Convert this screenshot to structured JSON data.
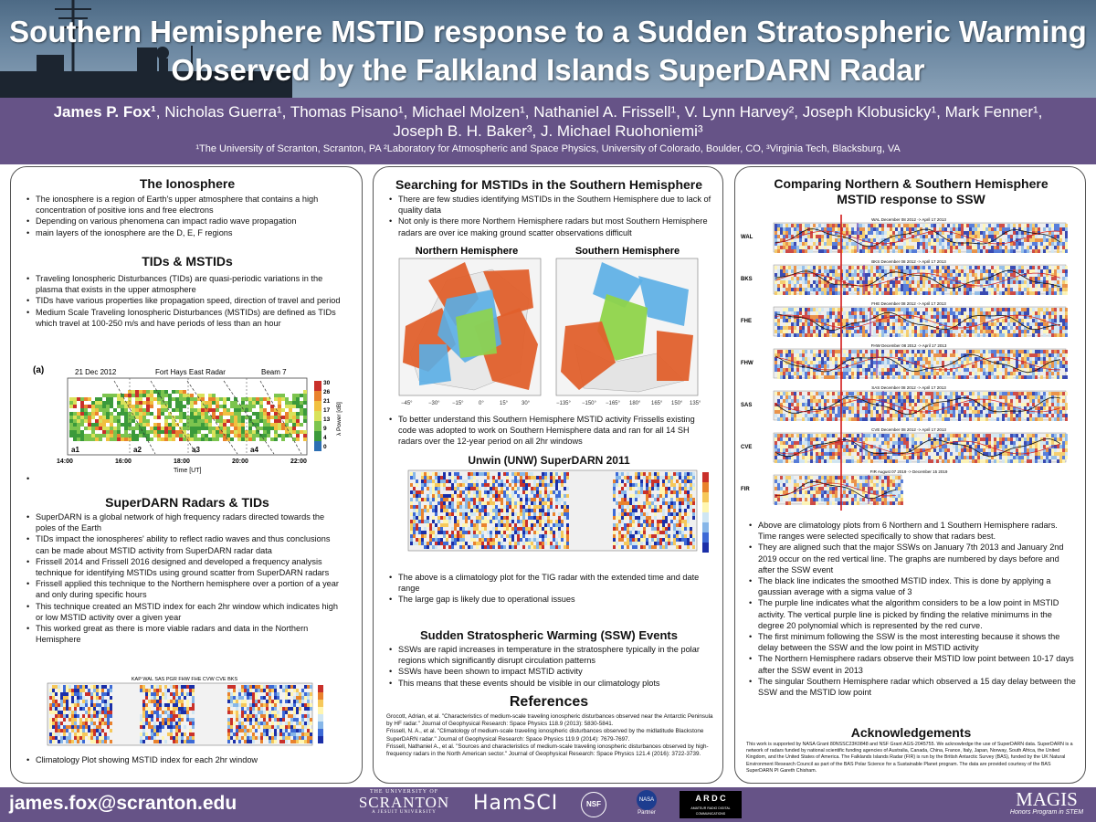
{
  "header": {
    "title_line1": "Southern Hemisphere MSTID response to a Sudden Stratospheric Warming",
    "title_line2": "Observed by the Falkland Islands SuperDARN Radar",
    "authors_line1_lead": "James P. Fox",
    "authors_line1_rest": ", Nicholas Guerra¹, Thomas Pisano¹, Michael Molzen¹, Nathaniel A. Frissell¹, V. Lynn Harvey², Joseph Klobusicky¹, Mark Fenner¹,",
    "authors_line2": "Joseph B. H. Baker³, J. Michael Ruohoniemi³",
    "affiliations": "¹The University of Scranton, Scranton, PA ²Laboratory for Atmospheric and Space Physics, University of Colorado, Boulder, CO, ³Virginia Tech, Blacksburg, VA"
  },
  "col1": {
    "ionosphere_title": "The Ionosphere",
    "ionosphere_bullets": [
      "The ionosphere is a region of Earth's upper atmosphere that contains a high concentration of positive ions and free electrons",
      "Depending on various phenomena can impact radio wave propagation",
      "main layers of the ionosphere are the D, E, F regions"
    ],
    "tids_title": "TIDs & MSTIDs",
    "tids_bullets": [
      "Traveling Ionospheric Disturbances (TIDs) are quasi-periodic variations in the plasma that exists in the upper atmosphere",
      "TIDs have various properties like propagation speed, direction of travel and period",
      "Medium Scale Traveling Ionospheric Disturbances (MSTIDs) are defined as TIDs which travel at 100-250 m/s and have periods of less than an hour"
    ],
    "fig_a": {
      "panel_label": "(a)",
      "date": "21 Dec 2012",
      "radar": "Fort Hays East Radar",
      "beam": "Beam 7",
      "xticks": [
        "14:00",
        "16:00",
        "18:00",
        "20:00",
        "22:00"
      ],
      "xlabel": "Time [UT]",
      "segments": [
        "a1",
        "a2",
        "a3",
        "a4"
      ],
      "colorbar_ticks": [
        "30",
        "26",
        "21",
        "17",
        "13",
        "9",
        "4",
        "0"
      ],
      "colorbar_label": "λ Power [dB]"
    },
    "superdarn_title": "SuperDARN Radars & TIDs",
    "superdarn_bullets": [
      "SuperDARN is a global network of high frequency radars directed towards the poles of the Earth",
      "TIDs impact the ionospheres' ability to reflect radio waves and thus conclusions can be made about MSTID activity from SuperDARN radar data",
      "Frissell 2014 and Frissell 2016 designed and developed a frequency analysis technique for identifying MSTIDs using ground scatter from SuperDARN radars",
      "Frissell applied this technique to the Northern hemisphere over a portion of a year and only during specific hours",
      "This technique created an MSTID index for each 2hr window which indicates high or low MSTID activity over a given year",
      "This worked great as there is more viable radars and data in the Northern Hemisphere"
    ],
    "climatology_title": "KAP WAL SAS PGR FHW FHE CVW CVE BKS",
    "climatology_caption": "Climatology Plot showing MSTID index for each 2hr window"
  },
  "col2": {
    "search_title": "Searching for MSTIDs in the Southern Hemisphere",
    "search_bullets": [
      "There are few studies identifying MSTIDs in the Southern Hemisphere due to lack of quality data",
      "Not only is there more Northern Hemisphere radars but most Southern Hemisphere radars are over ice making ground scatter observations difficult"
    ],
    "map_north_label": "Northern Hemisphere",
    "map_south_label": "Southern Hemisphere",
    "bullet_adapt": "To better understand this Southern Hemisphere MSTID activity Frissells existing code was adopted to work on Southern Hemisphere data and ran for all 14 SH radars over the 12-year period on all 2hr windows",
    "unwin_title": "Unwin (UNW) SuperDARN 2011",
    "unwin_bullets": [
      "The above is a climatology plot for the TIG radar with the extended time and date range",
      "The large gap is likely due to operational issues"
    ],
    "ssw_title": "Sudden Stratospheric Warming (SSW) Events",
    "ssw_bullets": [
      "SSWs are rapid increases in temperature in the stratosphere typically in the polar regions which significantly disrupt circulation patterns",
      "SSWs have been shown to impact MSTID activity",
      "This means that these events should be visible in our climatology plots"
    ],
    "references_title": "References",
    "references": [
      "Grocott, Adrian, et al. \"Characteristics of medium-scale traveling ionospheric disturbances observed near the Antarctic Peninsula by HF radar.\" Journal of Geophysical Research: Space Physics 118.9 (2013): 5830-5841.",
      "Frissell, N. A., et al. \"Climatology of medium-scale traveling ionospheric disturbances observed by the midlatitude Blackstone SuperDARN radar.\" Journal of Geophysical Research: Space Physics 119.9 (2014): 7679-7697.",
      "Frissell, Nathaniel A., et al. \"Sources and characteristics of medium-scale traveling ionospheric disturbances observed by high-frequency radars in the North American sector.\" Journal of Geophysical Research: Space Physics 121.4 (2016): 3722-3739."
    ]
  },
  "col3": {
    "compare_title_line1": "Comparing Northern & Southern Hemisphere",
    "compare_title_line2": "MSTID response to SSW",
    "radar_rows": [
      {
        "label": "WAL",
        "title": "WAL December 08 2012 -> April 17 2013"
      },
      {
        "label": "BKS",
        "title": "BKS December 08 2012 -> April 17 2013"
      },
      {
        "label": "FHE",
        "title": "FHE December 08 2012 -> April 17 2013"
      },
      {
        "label": "FHW",
        "title": "FHW December 08 2012 -> April 17 2013"
      },
      {
        "label": "SAS",
        "title": "SAS December 08 2012 -> April 17 2013"
      },
      {
        "label": "CVE",
        "title": "CVE December 08 2012 -> April 17 2013"
      },
      {
        "label": "FIR",
        "title": "FIR August 07 2019 -> December 15 2019"
      }
    ],
    "compare_bullets": [
      "Above are climatology plots from 6 Northern and 1 Southern Hemisphere radars. Time ranges were selected specifically to show that radars best.",
      "They are aligned such that the major SSWs on January 7th 2013 and January 2nd 2019 occur on the red vertical line. The graphs are numbered by days before and after the SSW event",
      "The black line indicates the smoothed MSTID index. This is done by applying a gaussian average with a sigma value of 3",
      "The purple line indicates what the algorithm considers to be a low point in MSTID activity. The vertical purple line is picked by finding the relative minimums in the degree 20 polynomial which is represented by the red curve.",
      "The first minimum following the SSW is the most interesting because it shows the delay between the SSW and the low point in MSTID activity",
      "The Northern Hemisphere radars observe their MSTID low point between 10-17 days after the SSW event in 2013",
      "The singular Southern Hemisphere radar which observed a 15 day delay between the SSW and the MSTID low point"
    ],
    "ack_title": "Acknowledgements",
    "ack_text": "This work is supported by NASA Grant 80NSSC23K0848 and NSF Grant AGS-2045755. We acknowledge the use of SuperDARN data. SuperDARN is a network of radars funded by national scientific funding agencies of Australia, Canada, China, France, Italy, Japan, Norway, South Africa, the United Kingdom, and the United States of America. The Falklands Islands Radar (FIR) is run by the British Antarctic Survey (BAS), funded by the UK Natural Environment Research Council as part of the BAS Polar Science for a Sustainable Planet program. The data are provided courtesy of the BAS SuperDARN PI Gareth Chisham."
  },
  "footer": {
    "email": "james.fox@scranton.edu",
    "scranton_top": "THE UNIVERSITY OF",
    "scranton_main": "SCRANTON",
    "scranton_sub": "A JESUIT UNIVERSITY",
    "hamsci": "HamSCI",
    "nsf": "NSF",
    "nasa": "NASA",
    "nasa_sub": "Partner",
    "ardc": "A R D C",
    "ardc_sub": "AMATEUR RADIO DIGITAL COMMUNICATIONS",
    "magis": "MAGIS",
    "magis_sub": "Honors Program in STEM"
  },
  "colors": {
    "header_purple": "#665387",
    "map_orange": "#e0602c",
    "map_blue": "#5aaee6",
    "map_green": "#8fd44a",
    "ssw_line": "#d21a1a"
  }
}
